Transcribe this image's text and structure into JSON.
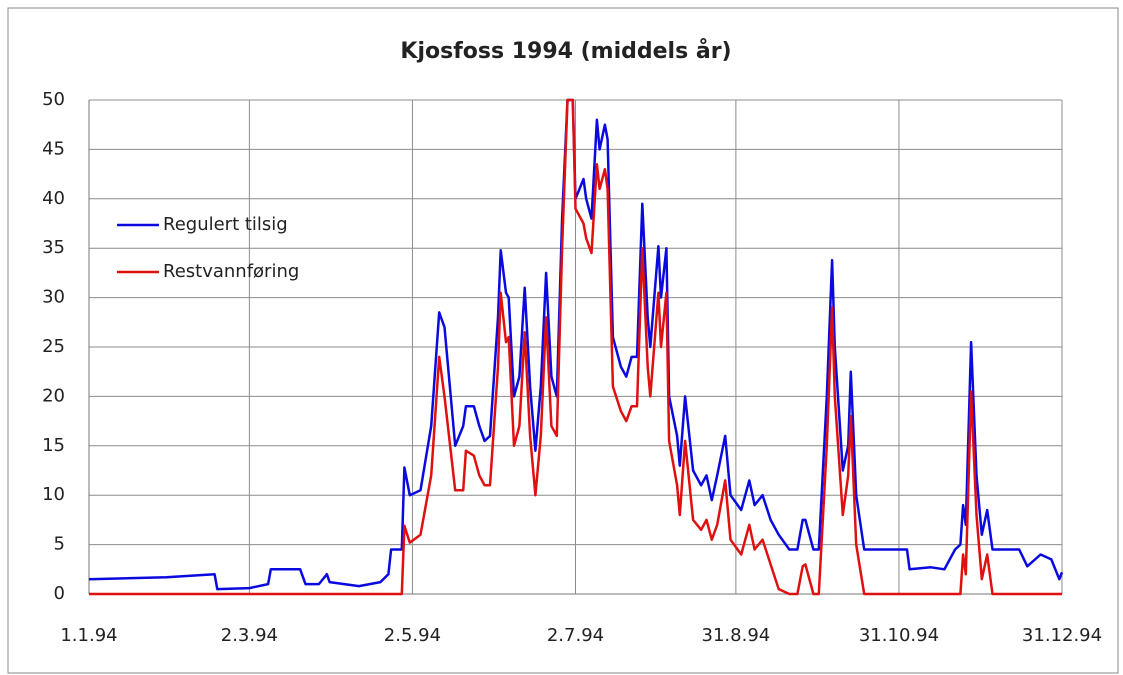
{
  "chart_data": {
    "type": "line",
    "title": "Kjosfoss 1994 (middels år)",
    "x": [
      1,
      30,
      48,
      49,
      61,
      68,
      69,
      80,
      82,
      87,
      90,
      91,
      102,
      110,
      113,
      114,
      118,
      119,
      121,
      125,
      129,
      132,
      134,
      138,
      141,
      142,
      145,
      147,
      149,
      151,
      154,
      155,
      157,
      158,
      160,
      162,
      164,
      166,
      168,
      170,
      172,
      174,
      176,
      178,
      180,
      182,
      183,
      186,
      187,
      189,
      191,
      192,
      194,
      195,
      197,
      200,
      202,
      204,
      206,
      208,
      210,
      211,
      214,
      215,
      217,
      218,
      221,
      222,
      224,
      227,
      230,
      232,
      234,
      236,
      239,
      241,
      245,
      248,
      250,
      253,
      256,
      259,
      263,
      266,
      268,
      269,
      272,
      274,
      277,
      279,
      280,
      283,
      285,
      286,
      288,
      291,
      307,
      308,
      316,
      321,
      325,
      327,
      328,
      329,
      331,
      333,
      335,
      337,
      339,
      349,
      352,
      357,
      361,
      364,
      365
    ],
    "series": [
      {
        "name": "Regulert tilsig",
        "color": "#0a0ae0",
        "values": [
          1.5,
          1.7,
          2.0,
          0.5,
          0.6,
          1.0,
          2.5,
          2.5,
          1.0,
          1.0,
          2.0,
          1.2,
          0.8,
          1.2,
          2.0,
          4.5,
          4.5,
          12.8,
          10,
          10.5,
          17,
          28.5,
          27,
          15,
          17,
          19,
          19,
          17,
          15.5,
          16,
          28,
          34.8,
          30.5,
          30,
          20,
          22,
          31,
          21,
          14.5,
          21,
          32.5,
          22,
          20,
          38,
          50,
          50,
          40,
          42,
          40,
          38,
          48,
          45,
          47.5,
          46,
          26,
          23,
          22,
          24,
          24,
          39.5,
          28,
          25,
          35.2,
          30,
          35,
          20,
          16,
          13,
          20,
          12.5,
          11,
          12,
          9.5,
          12,
          16,
          10,
          8.5,
          11.5,
          9,
          10,
          7.5,
          6,
          4.5,
          4.5,
          7.5,
          7.5,
          4.5,
          4.5,
          20,
          33.8,
          25,
          12.5,
          15,
          22.5,
          10,
          4.5,
          4.5,
          2.5,
          2.7,
          2.5,
          4.5,
          5,
          9,
          7,
          25.5,
          12,
          6,
          8.5,
          4.5,
          4.5,
          2.8,
          4,
          3.5,
          1.5,
          2.2
        ]
      },
      {
        "name": "Restvannføring",
        "color": "#e01010",
        "values": [
          0,
          0,
          0,
          0,
          0,
          0,
          0,
          0,
          0,
          0,
          0,
          0,
          0,
          0,
          0,
          0,
          0,
          6.9,
          5.2,
          6,
          12,
          24,
          20,
          10.5,
          10.5,
          14.5,
          14,
          12,
          11,
          11,
          23,
          30.5,
          25.5,
          26,
          15,
          17,
          26.5,
          16,
          10,
          16,
          28,
          17,
          16,
          35,
          50,
          50,
          39,
          37.5,
          36,
          34.5,
          43.5,
          41,
          43,
          41,
          21,
          18.5,
          17.5,
          19,
          19,
          35,
          23,
          20,
          30.5,
          25,
          30.5,
          15.5,
          11,
          8,
          15.5,
          7.5,
          6.5,
          7.5,
          5.5,
          7,
          11.5,
          5.5,
          4,
          7,
          4.5,
          5.5,
          3,
          0.5,
          0,
          0,
          2.8,
          3,
          0,
          0,
          15,
          29,
          20,
          8,
          12,
          18,
          5,
          0,
          0,
          0,
          0,
          0,
          0,
          0,
          4,
          2,
          20.5,
          8,
          1.5,
          4,
          0,
          0,
          0,
          0,
          0,
          0,
          0
        ]
      }
    ],
    "xlim": [
      1,
      365
    ],
    "xticks": [
      {
        "value": 1,
        "label": "1.1.94"
      },
      {
        "value": 61,
        "label": "2.3.94"
      },
      {
        "value": 122,
        "label": "2.5.94"
      },
      {
        "value": 183,
        "label": "2.7.94"
      },
      {
        "value": 243,
        "label": "31.8.94"
      },
      {
        "value": 304,
        "label": "31.10.94"
      },
      {
        "value": 365,
        "label": "31.12.94"
      }
    ],
    "ylim": [
      0,
      50
    ],
    "yticks": [
      0,
      5,
      10,
      15,
      20,
      25,
      30,
      35,
      40,
      45,
      50
    ],
    "grid": true,
    "legend": "left"
  }
}
